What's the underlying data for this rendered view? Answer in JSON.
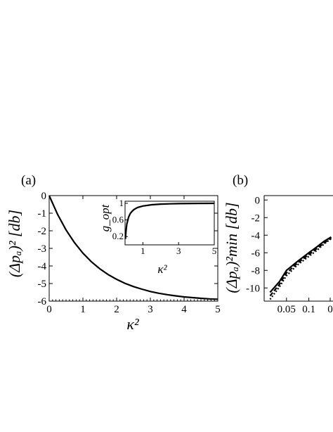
{
  "panels": {
    "a_label": "(a)",
    "b_label": "(b)"
  },
  "chart_data": [
    {
      "id": "main_a",
      "type": "line",
      "xlabel": "κ²",
      "ylabel": "(Δpₐ)² [db]",
      "xlim": [
        0,
        5
      ],
      "ylim": [
        -6,
        0
      ],
      "xticks": [
        "0",
        "1",
        "2",
        "3",
        "4",
        "5"
      ],
      "yticks": [
        "0",
        "-1",
        "-2",
        "-3",
        "-4",
        "-5",
        "-6"
      ],
      "grid": false,
      "series": [
        {
          "x": [
            0,
            0.25,
            0.5,
            0.75,
            1,
            1.25,
            1.5,
            1.75,
            2,
            2.25,
            2.5,
            2.75,
            3,
            3.25,
            3.5,
            3.75,
            4,
            4.25,
            4.5,
            4.75,
            5
          ],
          "y": [
            0,
            -1.07,
            -1.95,
            -2.67,
            -3.27,
            -3.76,
            -4.16,
            -4.49,
            -4.76,
            -4.99,
            -5.17,
            -5.32,
            -5.45,
            -5.55,
            -5.63,
            -5.7,
            -5.76,
            -5.8,
            -5.84,
            -5.87,
            -5.89
          ]
        }
      ]
    },
    {
      "id": "inset_a",
      "type": "line",
      "xlabel": "κ²",
      "ylabel": "g_opt",
      "xlim": [
        0,
        5
      ],
      "ylim": [
        0,
        1.05
      ],
      "xticks": [
        "1",
        "3",
        "5"
      ],
      "yticks": [
        "0.2",
        "0.6",
        "1"
      ],
      "series": [
        {
          "x": [
            0.02,
            0.05,
            0.1,
            0.2,
            0.3,
            0.4,
            0.5,
            0.7,
            1,
            1.5,
            2,
            2.5,
            3,
            4,
            5
          ],
          "y": [
            0.14,
            0.32,
            0.5,
            0.67,
            0.76,
            0.81,
            0.85,
            0.9,
            0.935,
            0.965,
            0.98,
            0.988,
            0.993,
            0.997,
            0.999
          ]
        }
      ]
    },
    {
      "id": "main_b",
      "type": "line",
      "xlabel": "",
      "ylabel": "(Δpₐ)²min [db]",
      "xscale": "log",
      "xticks": [
        "0.05",
        "0.1",
        "0"
      ],
      "yticks": [
        "0",
        "-2",
        "-4",
        "-6",
        "-8",
        "-10"
      ],
      "ylim": [
        -11.5,
        0.5
      ],
      "series": [
        {
          "style": "solid",
          "x": [
            0.03,
            0.04,
            0.05,
            0.07,
            0.1,
            0.13,
            0.16,
            0.2
          ],
          "y": [
            -10.5,
            -9.3,
            -8.0,
            -7.0,
            -6.0,
            -5.3,
            -4.7,
            -4.2
          ]
        },
        {
          "style": "dashed",
          "x": [
            0.03,
            0.04,
            0.05,
            0.07,
            0.1,
            0.13,
            0.16,
            0.2
          ],
          "y": [
            -10.9,
            -9.6,
            -8.3,
            -7.2,
            -6.2,
            -5.5,
            -4.9,
            -4.3
          ]
        },
        {
          "style": "dotted",
          "x": [
            0.03,
            0.04,
            0.05,
            0.07,
            0.1,
            0.13,
            0.16,
            0.2
          ],
          "y": [
            -11.3,
            -9.9,
            -8.6,
            -7.4,
            -6.4,
            -5.7,
            -5.0,
            -4.4
          ]
        }
      ]
    }
  ]
}
